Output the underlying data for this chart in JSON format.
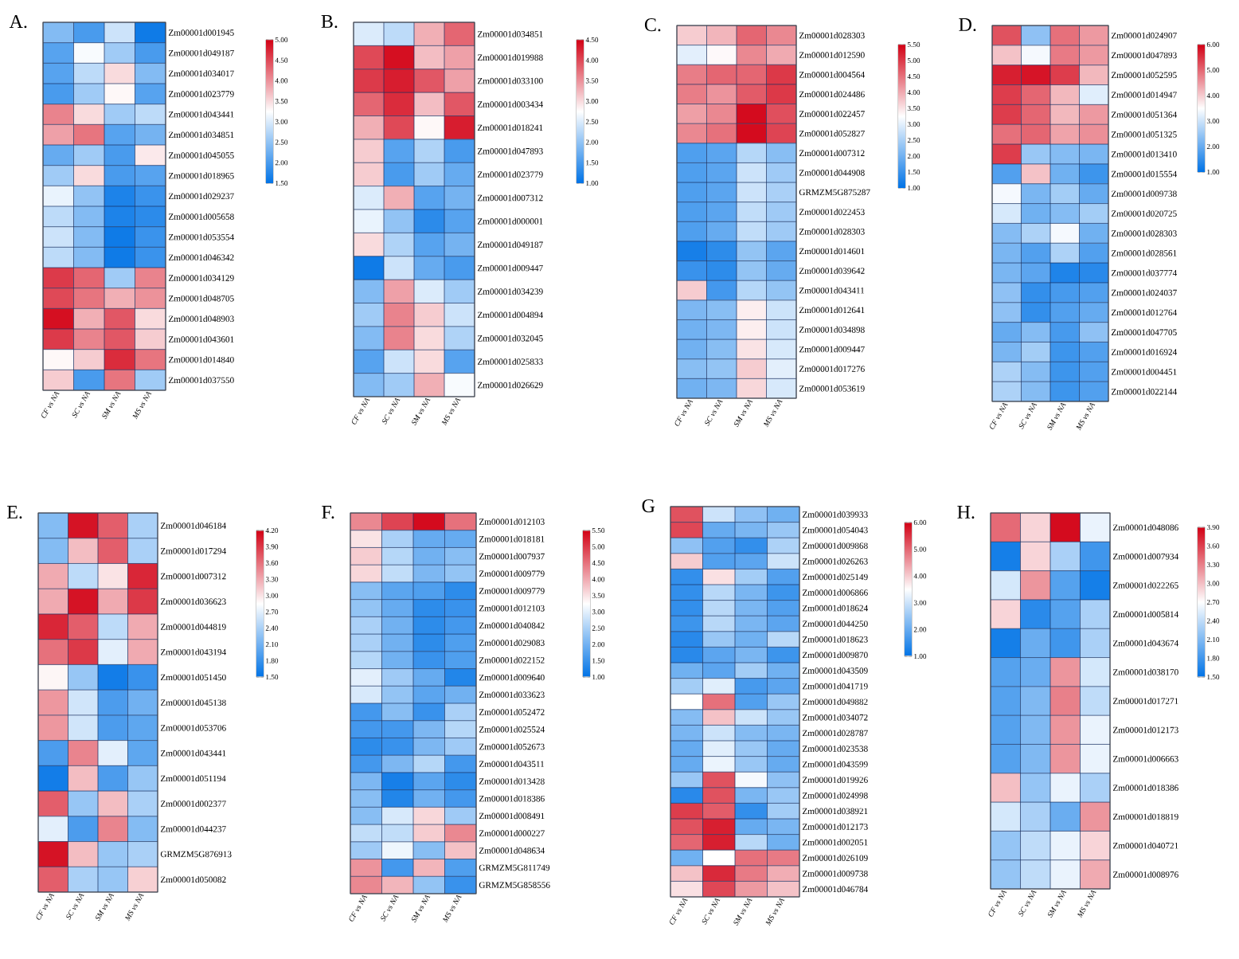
{
  "chart_data": [
    {
      "type": "heatmap",
      "grid": true,
      "title": "A.",
      "categories": [
        "CF vs NA",
        "SC vs NA",
        "SM vs NA",
        "MS vs NA"
      ],
      "y_categories": [
        "Zm00001d001945",
        "Zm00001d049187",
        "Zm00001d034017",
        "Zm00001d023779",
        "Zm00001d043441",
        "Zm00001d034851",
        "Zm00001d045055",
        "Zm00001d018965",
        "Zm00001d029237",
        "Zm00001d005658",
        "Zm00001d053554",
        "Zm00001d046342",
        "Zm00001d034129",
        "Zm00001d048705",
        "Zm00001d048903",
        "Zm00001d043601",
        "Zm00001d014840",
        "Zm00001d037550"
      ],
      "cells": [
        [
          2.4,
          2.0,
          2.9,
          1.6
        ],
        [
          2.1,
          3.2,
          2.6,
          2.0
        ],
        [
          2.1,
          2.8,
          3.5,
          2.4
        ],
        [
          2.0,
          2.6,
          3.3,
          2.1
        ],
        [
          4.1,
          3.5,
          2.6,
          2.8
        ],
        [
          3.9,
          4.2,
          2.1,
          2.3
        ],
        [
          2.2,
          2.6,
          2.0,
          3.4
        ],
        [
          2.6,
          3.5,
          2.0,
          2.1
        ],
        [
          3.1,
          2.5,
          1.7,
          1.9
        ],
        [
          2.8,
          2.4,
          1.7,
          1.8
        ],
        [
          2.9,
          2.4,
          1.6,
          1.9
        ],
        [
          2.8,
          2.4,
          1.6,
          1.9
        ],
        [
          4.6,
          4.3,
          2.6,
          4.1
        ],
        [
          4.5,
          4.2,
          3.8,
          4.0
        ],
        [
          4.9,
          3.8,
          4.4,
          3.5
        ],
        [
          4.6,
          4.1,
          4.4,
          3.6
        ],
        [
          3.3,
          3.6,
          4.7,
          4.2
        ],
        [
          3.6,
          2.0,
          4.2,
          2.6
        ]
      ],
      "clim": [
        1.5,
        5.0
      ],
      "cticks": [
        {
          "value": 1.5,
          "label": "1.50"
        },
        {
          "value": 2.0,
          "label": "2.00"
        },
        {
          "value": 2.5,
          "label": "2.50"
        },
        {
          "value": 3.0,
          "label": "3.00"
        },
        {
          "value": 3.5,
          "label": "3.50"
        },
        {
          "value": 4.0,
          "label": "4.00"
        },
        {
          "value": 4.5,
          "label": "4.50"
        },
        {
          "value": 5.0,
          "label": "5.00"
        }
      ]
    },
    {
      "type": "heatmap",
      "grid": true,
      "title": "B.",
      "categories": [
        "CF vs NA",
        "SC vs NA",
        "SM vs NA",
        "MS vs NA"
      ],
      "y_categories": [
        "Zm00001d034851",
        "Zm00001d019988",
        "Zm00001d033100",
        "Zm00001d003434",
        "Zm00001d018241",
        "Zm00001d047893",
        "Zm00001d023779",
        "Zm00001d007312",
        "Zm00001d000001",
        "Zm00001d049187",
        "Zm00001d009447",
        "Zm00001d034239",
        "Zm00001d004894",
        "Zm00001d032045",
        "Zm00001d025833",
        "Zm00001d026629"
      ],
      "cells": [
        [
          2.5,
          2.3,
          3.3,
          3.8
        ],
        [
          4.0,
          4.4,
          3.2,
          3.4
        ],
        [
          4.1,
          4.3,
          3.9,
          3.4
        ],
        [
          3.8,
          4.2,
          3.2,
          3.9
        ],
        [
          3.3,
          4.0,
          2.8,
          4.3
        ],
        [
          3.1,
          1.6,
          2.2,
          1.5
        ],
        [
          3.1,
          1.5,
          2.1,
          1.7
        ],
        [
          2.5,
          3.3,
          1.6,
          1.8
        ],
        [
          2.6,
          2.0,
          1.3,
          1.6
        ],
        [
          3.0,
          2.2,
          1.6,
          1.8
        ],
        [
          1.1,
          2.4,
          1.7,
          1.5
        ],
        [
          1.9,
          3.4,
          2.5,
          2.1
        ],
        [
          2.1,
          3.6,
          3.1,
          2.4
        ],
        [
          1.9,
          3.6,
          3.0,
          2.2
        ],
        [
          1.6,
          2.4,
          3.0,
          1.6
        ],
        [
          1.9,
          2.1,
          3.3,
          2.7
        ]
      ],
      "clim": [
        1.0,
        4.5
      ],
      "cticks": [
        {
          "value": 1.0,
          "label": "1.00"
        },
        {
          "value": 1.5,
          "label": "1.50"
        },
        {
          "value": 2.0,
          "label": "2.00"
        },
        {
          "value": 2.5,
          "label": "2.50"
        },
        {
          "value": 3.0,
          "label": "3.00"
        },
        {
          "value": 3.5,
          "label": "3.50"
        },
        {
          "value": 4.0,
          "label": "4.00"
        },
        {
          "value": 4.5,
          "label": "4.50"
        }
      ]
    },
    {
      "type": "heatmap",
      "grid": true,
      "title": "C.",
      "categories": [
        "CF vs NA",
        "SC vs NA",
        "SM vs NA",
        "MS vs NA"
      ],
      "y_categories": [
        "Zm00001d028303",
        "Zm00001d012590",
        "Zm00001d004564",
        "Zm00001d024486",
        "Zm00001d022457",
        "Zm00001d052827",
        "Zm00001d007312",
        "Zm00001d044908",
        "GRMZM5G875287",
        "Zm00001d022453",
        "Zm00001d028303",
        "Zm00001d014601",
        "Zm00001d039642",
        "Zm00001d043411",
        "Zm00001d012641",
        "Zm00001d034898",
        "Zm00001d009447",
        "Zm00001d017276",
        "Zm00001d053619"
      ],
      "cells": [
        [
          3.7,
          3.9,
          4.6,
          4.3
        ],
        [
          3.0,
          3.3,
          4.3,
          4.0
        ],
        [
          4.4,
          4.6,
          4.6,
          5.0
        ],
        [
          4.4,
          4.2,
          4.7,
          5.0
        ],
        [
          4.1,
          4.3,
          5.4,
          4.8
        ],
        [
          4.3,
          4.5,
          5.4,
          4.9
        ],
        [
          1.7,
          1.8,
          2.6,
          2.2
        ],
        [
          1.7,
          1.8,
          2.8,
          2.4
        ],
        [
          1.7,
          1.8,
          2.8,
          2.5
        ],
        [
          1.7,
          1.8,
          2.7,
          2.4
        ],
        [
          1.7,
          1.9,
          2.7,
          2.4
        ],
        [
          1.2,
          1.4,
          2.3,
          1.8
        ],
        [
          1.5,
          1.4,
          2.3,
          1.9
        ],
        [
          3.7,
          1.6,
          2.6,
          2.3
        ],
        [
          2.1,
          2.2,
          3.4,
          2.8
        ],
        [
          2.0,
          2.1,
          3.4,
          2.8
        ],
        [
          2.0,
          2.2,
          3.5,
          2.9
        ],
        [
          2.2,
          2.3,
          3.7,
          3.0
        ],
        [
          2.0,
          2.1,
          3.6,
          2.9
        ]
      ],
      "clim": [
        1.0,
        5.5
      ],
      "cticks": [
        {
          "value": 1.0,
          "label": "1.00"
        },
        {
          "value": 1.5,
          "label": "1.50"
        },
        {
          "value": 2.0,
          "label": "2.00"
        },
        {
          "value": 2.5,
          "label": "2.50"
        },
        {
          "value": 3.0,
          "label": "3.00"
        },
        {
          "value": 3.5,
          "label": "3.50"
        },
        {
          "value": 4.0,
          "label": "4.00"
        },
        {
          "value": 4.5,
          "label": "4.50"
        },
        {
          "value": 5.0,
          "label": "5.00"
        },
        {
          "value": 5.5,
          "label": "5.50"
        }
      ]
    },
    {
      "type": "heatmap",
      "grid": true,
      "title": "D.",
      "categories": [
        "CF vs NA",
        "SC vs NA",
        "SM vs NA",
        "MS vs NA"
      ],
      "y_categories": [
        "Zm00001d024907",
        "Zm00001d047893",
        "Zm00001d052595",
        "Zm00001d014947",
        "Zm00001d051364",
        "Zm00001d051325",
        "Zm00001d013410",
        "Zm00001d015554",
        "Zm00001d009738",
        "Zm00001d020725",
        "Zm00001d028303",
        "Zm00001d028561",
        "Zm00001d037774",
        "Zm00001d024037",
        "Zm00001d012764",
        "Zm00001d047705",
        "Zm00001d016924",
        "Zm00001d004451",
        "Zm00001d022144"
      ],
      "cells": [
        [
          5.2,
          2.4,
          4.9,
          4.5
        ],
        [
          4.1,
          3.4,
          4.8,
          4.5
        ],
        [
          5.7,
          5.8,
          5.4,
          4.2
        ],
        [
          5.4,
          5.0,
          4.2,
          3.2
        ],
        [
          5.4,
          5.0,
          4.2,
          4.5
        ],
        [
          4.9,
          5.0,
          4.4,
          4.6
        ],
        [
          5.4,
          2.5,
          2.3,
          2.2
        ],
        [
          1.8,
          4.1,
          2.1,
          1.6
        ],
        [
          3.4,
          2.2,
          2.6,
          2.0
        ],
        [
          3.1,
          2.1,
          2.3,
          2.6
        ],
        [
          2.3,
          2.7,
          3.4,
          2.1
        ],
        [
          2.2,
          1.8,
          2.7,
          1.8
        ],
        [
          2.2,
          1.9,
          1.3,
          1.4
        ],
        [
          2.4,
          1.5,
          1.7,
          1.8
        ],
        [
          2.4,
          1.5,
          1.8,
          2.0
        ],
        [
          2.0,
          2.3,
          1.7,
          2.4
        ],
        [
          2.2,
          2.6,
          1.6,
          1.8
        ],
        [
          2.7,
          2.3,
          1.6,
          1.8
        ],
        [
          2.7,
          2.3,
          1.6,
          1.8
        ]
      ],
      "clim": [
        1.0,
        6.0
      ],
      "cticks": [
        {
          "value": 1.0,
          "label": "1.00"
        },
        {
          "value": 2.0,
          "label": "2.00"
        },
        {
          "value": 3.0,
          "label": "3.00"
        },
        {
          "value": 4.0,
          "label": "4.00"
        },
        {
          "value": 5.0,
          "label": "5.00"
        },
        {
          "value": 6.0,
          "label": "6.00"
        }
      ]
    },
    {
      "type": "heatmap",
      "grid": true,
      "title": "E.",
      "categories": [
        "CF vs NA",
        "SC vs NA",
        "SM vs NA",
        "MS vs NA"
      ],
      "y_categories": [
        "Zm00001d046184",
        "Zm00001d017294",
        "Zm00001d007312",
        "Zm00001d036623",
        "Zm00001d044819",
        "Zm00001d043194",
        "Zm00001d051450",
        "Zm00001d045138",
        "Zm00001d053706",
        "Zm00001d043441",
        "Zm00001d051194",
        "Zm00001d002377",
        "Zm00001d044237",
        "GRMZM5G876913",
        "Zm00001d050082"
      ],
      "cells": [
        [
          2.2,
          4.1,
          3.7,
          2.4
        ],
        [
          2.2,
          3.2,
          3.7,
          2.4
        ],
        [
          3.3,
          2.5,
          3.0,
          4.0
        ],
        [
          3.3,
          4.1,
          3.3,
          3.9
        ],
        [
          4.0,
          3.7,
          2.5,
          3.3
        ],
        [
          3.6,
          3.9,
          2.7,
          3.3
        ],
        [
          2.9,
          2.3,
          1.6,
          1.8
        ],
        [
          3.4,
          2.6,
          1.9,
          2.1
        ],
        [
          3.4,
          2.6,
          1.9,
          2.0
        ],
        [
          1.9,
          3.5,
          2.7,
          2.0
        ],
        [
          1.6,
          3.2,
          1.9,
          2.3
        ],
        [
          3.7,
          2.3,
          3.2,
          2.4
        ],
        [
          2.7,
          1.9,
          3.5,
          2.2
        ],
        [
          4.1,
          3.2,
          2.3,
          2.4
        ],
        [
          3.7,
          2.4,
          2.3,
          3.1
        ]
      ],
      "clim": [
        1.5,
        4.2
      ],
      "cticks": [
        {
          "value": 1.5,
          "label": "1.50"
        },
        {
          "value": 1.8,
          "label": "1.80"
        },
        {
          "value": 2.1,
          "label": "2.10"
        },
        {
          "value": 2.4,
          "label": "2.40"
        },
        {
          "value": 2.7,
          "label": "2.70"
        },
        {
          "value": 3.0,
          "label": "3.00"
        },
        {
          "value": 3.3,
          "label": "3.30"
        },
        {
          "value": 3.6,
          "label": "3.60"
        },
        {
          "value": 3.9,
          "label": "3.90"
        },
        {
          "value": 4.2,
          "label": "4.20"
        }
      ]
    },
    {
      "type": "heatmap",
      "grid": true,
      "title": "F.",
      "categories": [
        "CF vs NA",
        "SC vs NA",
        "SM vs NA",
        "MS vs NA"
      ],
      "y_categories": [
        "Zm00001d012103",
        "Zm00001d018181",
        "Zm00001d007937",
        "Zm00001d009779",
        "Zm00001d009779",
        "Zm00001d012103",
        "Zm00001d040842",
        "Zm00001d029083",
        "Zm00001d022152",
        "Zm00001d009640",
        "Zm00001d033623",
        "Zm00001d052472",
        "Zm00001d025524",
        "Zm00001d052673",
        "Zm00001d043511",
        "Zm00001d013428",
        "Zm00001d018386",
        "Zm00001d008491",
        "Zm00001d000227",
        "Zm00001d048634",
        "GRMZM5G811749",
        "GRMZM5G858556"
      ],
      "cells": [
        [
          4.3,
          4.9,
          5.4,
          4.5
        ],
        [
          3.5,
          2.5,
          1.9,
          1.9
        ],
        [
          3.7,
          2.6,
          2.0,
          2.2
        ],
        [
          3.6,
          2.7,
          2.1,
          2.3
        ],
        [
          2.2,
          1.8,
          1.7,
          1.4
        ],
        [
          2.3,
          1.9,
          1.4,
          1.5
        ],
        [
          2.5,
          2.0,
          1.4,
          1.6
        ],
        [
          2.5,
          2.0,
          1.4,
          1.7
        ],
        [
          2.6,
          2.0,
          1.5,
          1.7
        ],
        [
          3.0,
          2.4,
          1.9,
          1.3
        ],
        [
          2.9,
          2.3,
          1.8,
          2.0
        ],
        [
          1.6,
          2.2,
          1.5,
          2.5
        ],
        [
          1.6,
          1.6,
          2.1,
          2.6
        ],
        [
          1.4,
          1.5,
          2.1,
          2.4
        ],
        [
          1.6,
          2.1,
          2.6,
          1.6
        ],
        [
          2.1,
          1.2,
          1.8,
          1.4
        ],
        [
          2.2,
          1.3,
          2.0,
          1.6
        ],
        [
          2.2,
          2.9,
          3.6,
          2.4
        ],
        [
          2.7,
          2.7,
          3.7,
          4.3
        ],
        [
          2.4,
          3.1,
          2.2,
          3.8
        ],
        [
          4.2,
          1.6,
          3.9,
          1.7
        ],
        [
          4.3,
          3.9,
          2.3,
          1.5
        ]
      ],
      "clim": [
        1.0,
        5.5
      ],
      "cticks": [
        {
          "value": 1.0,
          "label": "1.00"
        },
        {
          "value": 1.5,
          "label": "1.50"
        },
        {
          "value": 2.0,
          "label": "2.00"
        },
        {
          "value": 2.5,
          "label": "2.50"
        },
        {
          "value": 3.0,
          "label": "3.00"
        },
        {
          "value": 3.5,
          "label": "3.50"
        },
        {
          "value": 4.0,
          "label": "4.00"
        },
        {
          "value": 4.5,
          "label": "4.50"
        },
        {
          "value": 5.0,
          "label": "5.00"
        },
        {
          "value": 5.5,
          "label": "5.50"
        }
      ]
    },
    {
      "type": "heatmap",
      "grid": true,
      "title": "G",
      "categories": [
        "CF vs NA",
        "SC vs NA",
        "SM vs NA",
        "MS vs NA"
      ],
      "y_categories": [
        "Zm00001d039933",
        "Zm00001d054043",
        "Zm00001d009868",
        "Zm00001d026263",
        "Zm00001d025149",
        "Zm00001d006866",
        "Zm00001d018624",
        "Zm00001d044250",
        "Zm00001d018623",
        "Zm00001d009870",
        "Zm00001d043509",
        "Zm00001d041719",
        "Zm00001d049882",
        "Zm00001d034072",
        "Zm00001d028787",
        "Zm00001d023538",
        "Zm00001d043599",
        "Zm00001d019926",
        "Zm00001d024998",
        "Zm00001d038921",
        "Zm00001d012173",
        "Zm00001d002051",
        "Zm00001d026109",
        "Zm00001d009738",
        "Zm00001d046784"
      ],
      "cells": [
        [
          5.2,
          3.0,
          2.4,
          2.1
        ],
        [
          5.3,
          2.0,
          2.2,
          2.5
        ],
        [
          2.4,
          1.8,
          1.5,
          2.7
        ],
        [
          4.0,
          1.8,
          1.9,
          3.0
        ],
        [
          1.5,
          3.8,
          2.6,
          1.8
        ],
        [
          1.5,
          2.8,
          2.2,
          1.6
        ],
        [
          1.5,
          2.8,
          2.2,
          1.8
        ],
        [
          1.6,
          2.8,
          2.2,
          1.9
        ],
        [
          1.4,
          2.5,
          2.1,
          2.8
        ],
        [
          1.4,
          1.9,
          2.2,
          1.6
        ],
        [
          2.1,
          1.9,
          2.6,
          2.1
        ],
        [
          2.6,
          3.2,
          1.7,
          1.9
        ],
        [
          3.5,
          4.9,
          1.8,
          2.5
        ],
        [
          2.3,
          4.1,
          3.0,
          2.5
        ],
        [
          2.2,
          3.0,
          2.3,
          2.2
        ],
        [
          2.0,
          3.2,
          2.5,
          2.0
        ],
        [
          2.0,
          3.3,
          2.5,
          2.0
        ],
        [
          2.5,
          5.2,
          3.4,
          2.4
        ],
        [
          1.4,
          5.2,
          2.2,
          2.5
        ],
        [
          5.4,
          5.1,
          1.5,
          2.6
        ],
        [
          5.2,
          5.7,
          2.0,
          2.2
        ],
        [
          5.0,
          5.7,
          2.8,
          2.1
        ],
        [
          2.1,
          3.5,
          4.9,
          4.8
        ],
        [
          4.1,
          5.6,
          4.8,
          4.3
        ],
        [
          3.8,
          5.3,
          4.5,
          4.1
        ]
      ],
      "clim": [
        1.0,
        6.0
      ],
      "cticks": [
        {
          "value": 1.0,
          "label": "1.00"
        },
        {
          "value": 2.0,
          "label": "2.00"
        },
        {
          "value": 3.0,
          "label": "3.00"
        },
        {
          "value": 4.0,
          "label": "4.00"
        },
        {
          "value": 5.0,
          "label": "5.00"
        },
        {
          "value": 6.0,
          "label": "6.00"
        }
      ]
    },
    {
      "type": "heatmap",
      "grid": true,
      "title": "H.",
      "categories": [
        "CF vs NA",
        "SC vs NA",
        "SM vs NA",
        "MS vs NA"
      ],
      "y_categories": [
        "Zm00001d048086",
        "Zm00001d007934",
        "Zm00001d022265",
        "Zm00001d005814",
        "Zm00001d043674",
        "Zm00001d038170",
        "Zm00001d017271",
        "Zm00001d012173",
        "Zm00001d006663",
        "Zm00001d018386",
        "Zm00001d018819",
        "Zm00001d040721",
        "Zm00001d008976"
      ],
      "cells": [
        [
          3.4,
          2.9,
          3.85,
          2.6
        ],
        [
          1.6,
          2.9,
          2.3,
          1.8
        ],
        [
          2.5,
          3.2,
          1.9,
          1.6
        ],
        [
          2.9,
          1.7,
          1.9,
          2.3
        ],
        [
          1.6,
          2.0,
          1.8,
          2.3
        ],
        [
          1.9,
          2.0,
          3.2,
          2.5
        ],
        [
          1.9,
          2.1,
          3.3,
          2.4
        ],
        [
          1.9,
          2.1,
          3.2,
          2.6
        ],
        [
          1.9,
          2.1,
          3.2,
          2.6
        ],
        [
          3.0,
          2.2,
          2.6,
          2.3
        ],
        [
          2.5,
          2.3,
          2.0,
          3.2
        ],
        [
          2.2,
          2.4,
          2.6,
          2.9
        ],
        [
          2.2,
          2.4,
          2.6,
          3.1
        ]
      ],
      "clim": [
        1.5,
        3.9
      ],
      "cticks": [
        {
          "value": 1.5,
          "label": "1.50"
        },
        {
          "value": 1.8,
          "label": "1.80"
        },
        {
          "value": 2.1,
          "label": "2.10"
        },
        {
          "value": 2.4,
          "label": "2.40"
        },
        {
          "value": 2.7,
          "label": "2.70"
        },
        {
          "value": 3.0,
          "label": "3.00"
        },
        {
          "value": 3.3,
          "label": "3.30"
        },
        {
          "value": 3.6,
          "label": "3.60"
        },
        {
          "value": 3.9,
          "label": "3.90"
        }
      ]
    }
  ]
}
